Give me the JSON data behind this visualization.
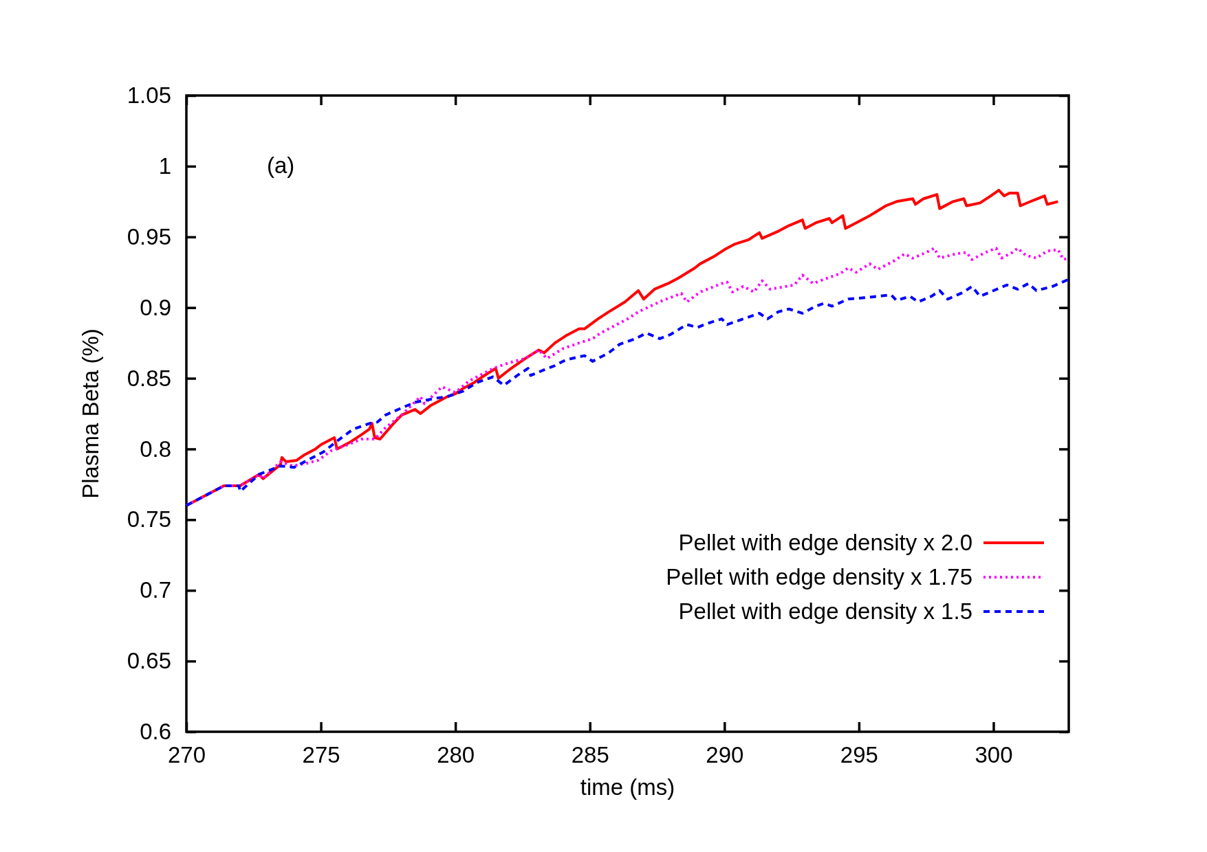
{
  "chart_data": {
    "type": "line",
    "xlabel": "time (ms)",
    "ylabel": "Plasma Beta (%)",
    "annotations": [
      "(a)"
    ],
    "xlim": [
      270,
      302.8
    ],
    "xticks": [
      270,
      275,
      280,
      285,
      290,
      295,
      300
    ],
    "ylim": [
      0.6,
      1.05
    ],
    "yticks": [
      0.6,
      0.65,
      0.7,
      0.75,
      0.8,
      0.85,
      0.9,
      0.95,
      1,
      1.05
    ],
    "grid": false,
    "legend": "bottom right",
    "series": [
      {
        "name": "Pellet with edge density x 2.0",
        "color": "#ff0000",
        "line_style": "solid",
        "x": [
          270,
          270.7,
          271.4,
          272.0,
          272.7,
          272.85,
          273.5,
          273.55,
          273.7,
          274.1,
          274.4,
          274.8,
          275.0,
          275.4,
          275.5,
          275.6,
          276.1,
          276.5,
          276.8,
          276.9,
          277.0,
          277.2,
          277.7,
          278.0,
          278.5,
          278.7,
          279.1,
          279.7,
          280.0,
          280.3,
          280.7,
          281.0,
          281.5,
          281.6,
          282.0,
          282.6,
          283.1,
          283.3,
          283.7,
          284.1,
          284.6,
          284.8,
          285.3,
          285.7,
          286.3,
          286.8,
          287.0,
          287.4,
          287.9,
          288.3,
          288.9,
          289.1,
          289.6,
          290.0,
          290.4,
          290.9,
          291.3,
          291.4,
          292.0,
          292.4,
          292.9,
          293.0,
          293.4,
          293.9,
          294.0,
          294.4,
          294.5,
          294.9,
          295.4,
          296.0,
          296.4,
          297.0,
          297.1,
          297.4,
          297.9,
          298.0,
          298.5,
          298.9,
          299.0,
          299.5,
          299.9,
          300.2,
          300.4,
          300.6,
          300.9,
          301.0,
          301.5,
          301.9,
          302.0,
          302.4
        ],
        "values": [
          0.76,
          0.767,
          0.774,
          0.774,
          0.782,
          0.779,
          0.789,
          0.794,
          0.791,
          0.792,
          0.796,
          0.8,
          0.803,
          0.807,
          0.808,
          0.8,
          0.805,
          0.81,
          0.814,
          0.818,
          0.808,
          0.807,
          0.818,
          0.824,
          0.828,
          0.825,
          0.831,
          0.837,
          0.839,
          0.843,
          0.847,
          0.851,
          0.857,
          0.85,
          0.856,
          0.864,
          0.87,
          0.868,
          0.875,
          0.88,
          0.885,
          0.885,
          0.892,
          0.897,
          0.904,
          0.912,
          0.906,
          0.913,
          0.917,
          0.921,
          0.928,
          0.931,
          0.936,
          0.941,
          0.945,
          0.948,
          0.953,
          0.949,
          0.954,
          0.958,
          0.962,
          0.956,
          0.96,
          0.963,
          0.96,
          0.965,
          0.956,
          0.96,
          0.965,
          0.972,
          0.975,
          0.977,
          0.973,
          0.977,
          0.98,
          0.97,
          0.975,
          0.977,
          0.972,
          0.974,
          0.979,
          0.983,
          0.979,
          0.981,
          0.981,
          0.972,
          0.976,
          0.979,
          0.973,
          0.975
        ]
      },
      {
        "name": "Pellet with edge density x 1.75",
        "color": "#ff00ff",
        "line_style": "dotted",
        "x": [
          270,
          270.7,
          271.4,
          272.0,
          272.7,
          272.85,
          273.5,
          273.95,
          274.5,
          274.9,
          275.4,
          276.0,
          276.5,
          277.0,
          277.4,
          278.0,
          278.7,
          278.85,
          279.5,
          280.0,
          280.5,
          281.4,
          282.0,
          282.6,
          283.1,
          283.4,
          284.0,
          284.6,
          285.1,
          285.4,
          286.0,
          286.4,
          286.8,
          287.7,
          288.4,
          288.6,
          289.1,
          289.9,
          290.1,
          290.3,
          290.7,
          291.1,
          291.4,
          291.7,
          292.6,
          292.9,
          293.3,
          293.7,
          294.3,
          294.6,
          294.9,
          295.4,
          295.7,
          296.3,
          296.7,
          297.0,
          297.5,
          297.8,
          298.0,
          298.6,
          299.0,
          299.2,
          299.7,
          300.1,
          300.3,
          300.7,
          300.9,
          301.2,
          301.6,
          302.0,
          302.4,
          302.6,
          302.8
        ],
        "values": [
          0.76,
          0.767,
          0.774,
          0.774,
          0.782,
          0.779,
          0.791,
          0.788,
          0.79,
          0.792,
          0.799,
          0.803,
          0.807,
          0.807,
          0.815,
          0.824,
          0.837,
          0.832,
          0.844,
          0.84,
          0.848,
          0.857,
          0.861,
          0.864,
          0.87,
          0.864,
          0.871,
          0.875,
          0.878,
          0.882,
          0.888,
          0.892,
          0.897,
          0.905,
          0.91,
          0.904,
          0.911,
          0.917,
          0.918,
          0.911,
          0.915,
          0.911,
          0.919,
          0.913,
          0.916,
          0.923,
          0.917,
          0.92,
          0.924,
          0.928,
          0.925,
          0.931,
          0.927,
          0.933,
          0.938,
          0.935,
          0.939,
          0.942,
          0.935,
          0.938,
          0.939,
          0.934,
          0.939,
          0.942,
          0.935,
          0.939,
          0.942,
          0.937,
          0.935,
          0.94,
          0.941,
          0.934,
          0.935
        ]
      },
      {
        "name": "Pellet with edge density x 1.5",
        "color": "#0000ff",
        "line_style": "dashed",
        "x": [
          270,
          270.7,
          271.4,
          271.95,
          272.0,
          272.7,
          273.5,
          274.0,
          274.5,
          275.1,
          275.7,
          276.2,
          276.8,
          277.1,
          277.4,
          278.0,
          278.5,
          279.3,
          279.7,
          280.3,
          280.8,
          281.4,
          281.8,
          282.3,
          282.7,
          282.8,
          283.3,
          283.7,
          284.1,
          284.8,
          285.1,
          285.7,
          286.1,
          286.7,
          287.1,
          287.6,
          288.0,
          288.6,
          289.0,
          289.4,
          289.9,
          290.1,
          290.7,
          291.3,
          291.6,
          292.0,
          292.4,
          292.9,
          293.4,
          293.7,
          294.0,
          294.6,
          295.2,
          295.7,
          296.2,
          296.4,
          296.9,
          297.2,
          297.7,
          298.0,
          298.3,
          298.9,
          299.2,
          299.5,
          300.0,
          300.5,
          300.9,
          301.3,
          301.6,
          302.2,
          302.8
        ],
        "values": [
          0.76,
          0.767,
          0.774,
          0.774,
          0.77,
          0.782,
          0.788,
          0.787,
          0.792,
          0.798,
          0.807,
          0.814,
          0.818,
          0.819,
          0.824,
          0.829,
          0.833,
          0.836,
          0.837,
          0.841,
          0.847,
          0.851,
          0.845,
          0.852,
          0.857,
          0.852,
          0.856,
          0.859,
          0.863,
          0.866,
          0.862,
          0.868,
          0.874,
          0.878,
          0.882,
          0.878,
          0.881,
          0.888,
          0.886,
          0.889,
          0.892,
          0.888,
          0.892,
          0.896,
          0.892,
          0.897,
          0.899,
          0.896,
          0.901,
          0.903,
          0.901,
          0.906,
          0.907,
          0.908,
          0.909,
          0.905,
          0.908,
          0.904,
          0.908,
          0.912,
          0.906,
          0.911,
          0.915,
          0.908,
          0.912,
          0.916,
          0.913,
          0.917,
          0.912,
          0.915,
          0.92
        ]
      }
    ]
  }
}
